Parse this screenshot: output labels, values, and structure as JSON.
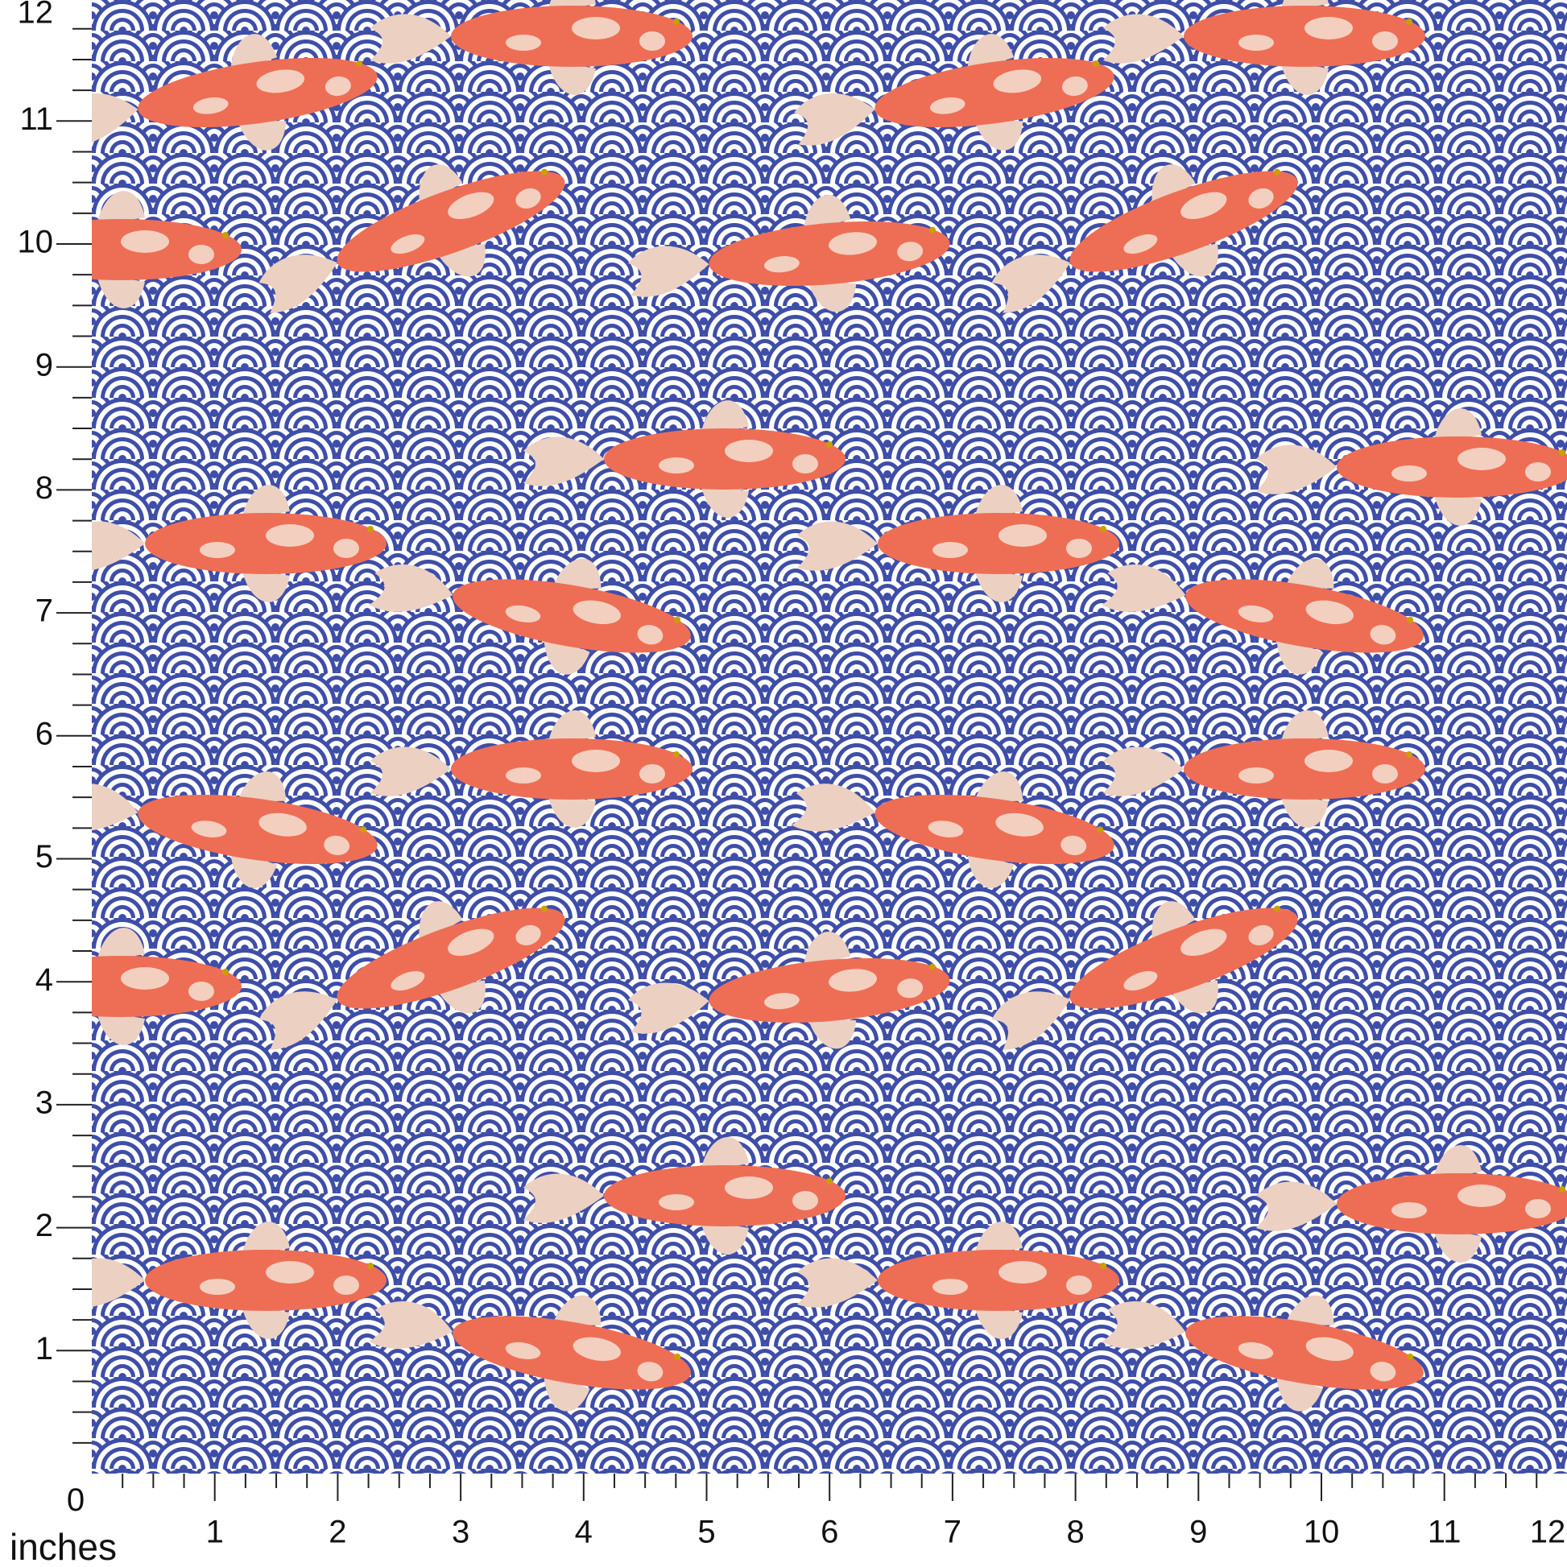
{
  "ruler": {
    "origin_label": "0",
    "unit_label": "inches",
    "x_labels": [
      "1",
      "2",
      "3",
      "4",
      "5",
      "6",
      "7",
      "8",
      "9",
      "10",
      "11",
      "12"
    ],
    "y_labels": [
      "1",
      "2",
      "3",
      "4",
      "5",
      "6",
      "7",
      "8",
      "9",
      "10",
      "11",
      "12"
    ]
  }
}
